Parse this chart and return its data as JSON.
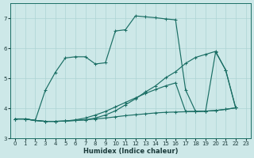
{
  "xlabel": "Humidex (Indice chaleur)",
  "background_color": "#cde8e8",
  "grid_color": "#acd4d4",
  "line_color": "#1a6e64",
  "xlim": [
    -0.5,
    23.5
  ],
  "ylim": [
    3.0,
    7.5
  ],
  "yticks": [
    3,
    4,
    5,
    6,
    7
  ],
  "xticks": [
    0,
    1,
    2,
    3,
    4,
    5,
    6,
    7,
    8,
    9,
    10,
    11,
    12,
    13,
    14,
    15,
    16,
    17,
    18,
    19,
    20,
    21,
    22,
    23
  ],
  "line1_x": [
    0,
    1,
    2,
    3,
    4,
    5,
    6,
    7,
    8,
    9,
    10,
    11,
    12,
    13,
    14,
    15,
    16,
    17,
    18,
    19,
    20,
    21,
    22
  ],
  "line1_y": [
    3.65,
    3.65,
    3.6,
    3.57,
    3.57,
    3.58,
    3.6,
    3.62,
    3.65,
    3.68,
    3.72,
    3.76,
    3.79,
    3.82,
    3.85,
    3.87,
    3.88,
    3.89,
    3.9,
    3.91,
    3.93,
    3.97,
    4.02
  ],
  "line2_x": [
    0,
    1,
    2,
    3,
    4,
    5,
    6,
    7,
    8,
    9,
    10,
    11,
    12,
    13,
    14,
    15,
    16,
    17,
    18,
    19,
    20,
    21,
    22
  ],
  "line2_y": [
    3.65,
    3.65,
    3.6,
    3.57,
    3.57,
    3.58,
    3.62,
    3.68,
    3.78,
    3.9,
    4.05,
    4.2,
    4.35,
    4.5,
    4.63,
    4.75,
    4.85,
    3.9,
    3.9,
    3.91,
    3.93,
    3.97,
    4.02
  ],
  "line3_x": [
    0,
    1,
    2,
    3,
    4,
    5,
    6,
    7,
    8,
    9,
    10,
    11,
    12,
    13,
    14,
    15,
    16,
    17,
    18,
    19,
    20,
    21,
    22
  ],
  "line3_y": [
    3.65,
    3.65,
    3.6,
    4.6,
    5.2,
    5.68,
    5.72,
    5.72,
    5.48,
    5.52,
    6.58,
    6.62,
    7.08,
    7.05,
    7.02,
    6.98,
    6.95,
    4.62,
    3.9,
    3.91,
    5.88,
    5.28,
    4.02
  ],
  "line4_x": [
    0,
    1,
    2,
    3,
    4,
    5,
    6,
    7,
    8,
    9,
    10,
    11,
    12,
    13,
    14,
    15,
    16,
    17,
    18,
    19,
    20,
    21,
    22
  ],
  "line4_y": [
    3.65,
    3.65,
    3.6,
    3.57,
    3.57,
    3.58,
    3.6,
    3.62,
    3.68,
    3.78,
    3.92,
    4.12,
    4.32,
    4.55,
    4.75,
    5.02,
    5.22,
    5.5,
    5.7,
    5.8,
    5.9,
    5.28,
    4.02
  ]
}
